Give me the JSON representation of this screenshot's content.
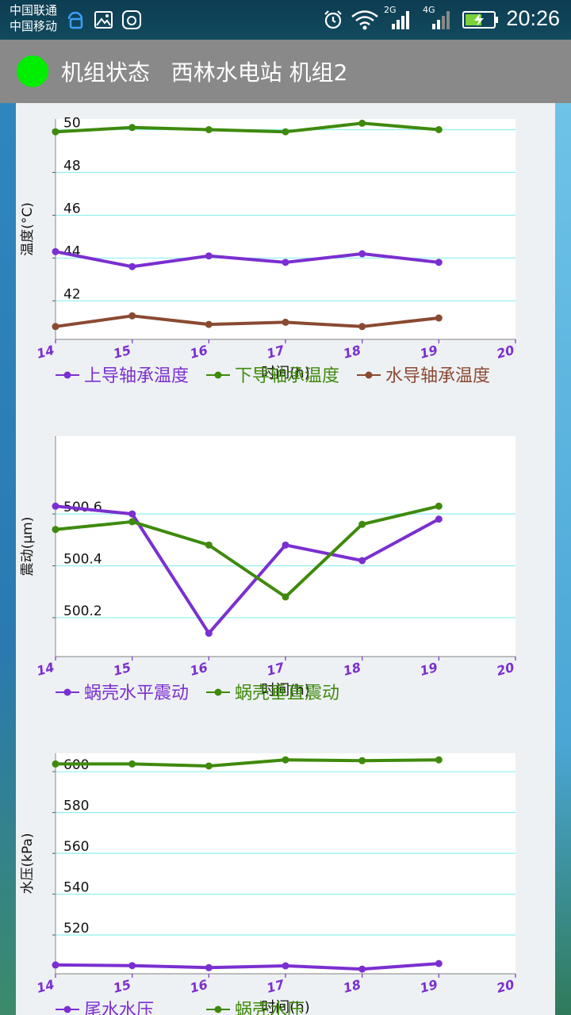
{
  "status_bar": {
    "carrier_1": "中国联通",
    "carrier_2": "中国移动",
    "net_1": "2G",
    "net_2": "4G",
    "time": "20:26",
    "icons": [
      "key-icon",
      "image-icon",
      "app-icon",
      "alarm-icon",
      "wifi-icon",
      "signal-icon",
      "battery-charging-icon"
    ]
  },
  "app_bar": {
    "title": "机组状态   西林水电站 机组2",
    "status_color": "#00ee00"
  },
  "colors": {
    "purple": "#7b2fd0",
    "green": "#3f8a0c",
    "brown": "#8a4a32",
    "grid": "#8ff0f0"
  },
  "chart_data": [
    {
      "type": "line",
      "ylabel": "温度(°C)",
      "xlabel": "时间(h)",
      "x_ticks": [
        "14",
        "15",
        "16",
        "17",
        "18",
        "19",
        "20"
      ],
      "xlim": [
        14,
        20
      ],
      "ylim": [
        40.2,
        50.5
      ],
      "y_ticks": [
        42,
        44,
        46,
        48,
        50
      ],
      "grid": true,
      "legend_position": "bottom",
      "series": [
        {
          "name": "上导轴承温度",
          "color": "#7b2fd0",
          "x": [
            14,
            15,
            16,
            17,
            18,
            19
          ],
          "y": [
            44.3,
            43.6,
            44.1,
            43.8,
            44.2,
            43.8
          ]
        },
        {
          "name": "下导轴承温度",
          "color": "#3f8a0c",
          "x": [
            14,
            15,
            16,
            17,
            18,
            19
          ],
          "y": [
            49.9,
            50.1,
            50.0,
            49.9,
            50.3,
            50.0
          ]
        },
        {
          "name": "水导轴承温度",
          "color": "#8a4a32",
          "x": [
            14,
            15,
            16,
            17,
            18,
            19
          ],
          "y": [
            40.8,
            41.3,
            40.9,
            41.0,
            40.8,
            41.2
          ]
        }
      ]
    },
    {
      "type": "line",
      "ylabel": "震动(μm)",
      "xlabel": "时间(h)",
      "x_ticks": [
        "14",
        "15",
        "16",
        "17",
        "18",
        "19",
        "20"
      ],
      "xlim": [
        14,
        20
      ],
      "ylim": [
        500.05,
        500.9
      ],
      "y_ticks": [
        "500.2",
        "500.4",
        "500.6"
      ],
      "grid": true,
      "legend_position": "bottom",
      "series": [
        {
          "name": "蜗壳水平震动",
          "color": "#7b2fd0",
          "x": [
            14,
            15,
            16,
            17,
            18,
            19
          ],
          "y": [
            500.63,
            500.6,
            500.14,
            500.48,
            500.42,
            500.58
          ]
        },
        {
          "name": "蜗壳垂直震动",
          "color": "#3f8a0c",
          "x": [
            14,
            15,
            16,
            17,
            18,
            19
          ],
          "y": [
            500.54,
            500.57,
            500.48,
            500.28,
            500.56,
            500.63
          ]
        }
      ]
    },
    {
      "type": "line",
      "ylabel": "水压(kPa)",
      "xlabel": "时间(h)",
      "x_ticks": [
        "14",
        "15",
        "16",
        "17",
        "18",
        "19",
        "20"
      ],
      "xlim": [
        14,
        20
      ],
      "ylim": [
        501,
        609
      ],
      "y_ticks": [
        520,
        540,
        560,
        580,
        600
      ],
      "grid": true,
      "legend_position": "bottom",
      "series": [
        {
          "name": "尾水水压",
          "color": "#7b2fd0",
          "x": [
            14,
            15,
            16,
            17,
            18,
            19
          ],
          "y": [
            505.3,
            505.0,
            504.0,
            504.9,
            503.3,
            506.0
          ]
        },
        {
          "name": "蜗壳水压",
          "color": "#3f8a0c",
          "x": [
            14,
            15,
            16,
            17,
            18,
            19
          ],
          "y": [
            603.8,
            603.8,
            602.8,
            605.8,
            605.4,
            605.8
          ]
        }
      ]
    }
  ]
}
